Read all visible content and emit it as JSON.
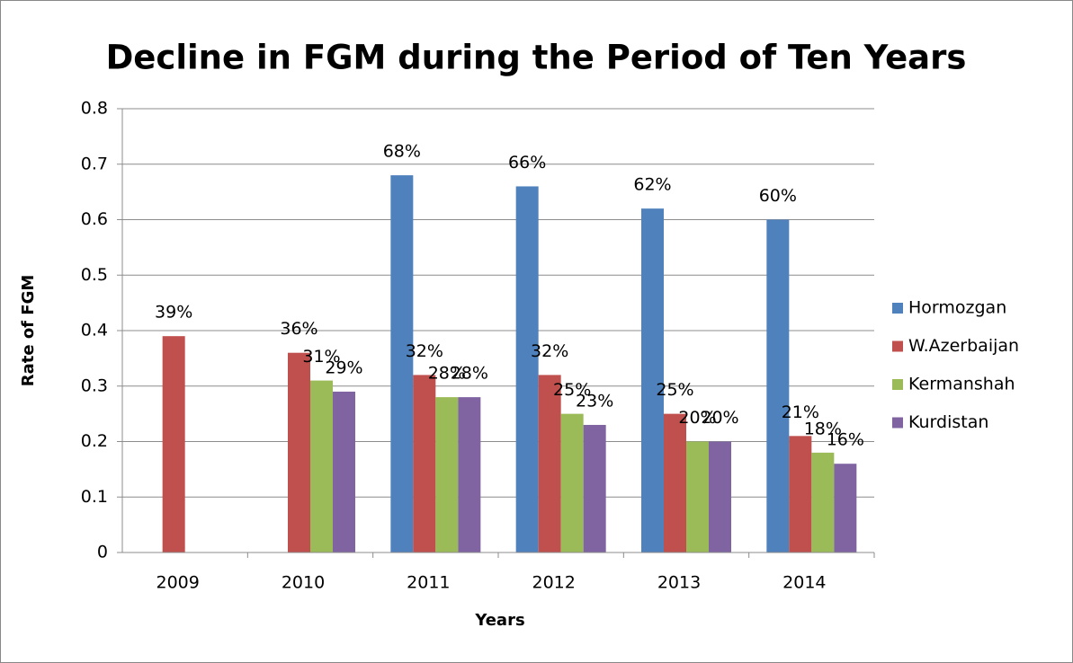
{
  "chart_data": {
    "type": "bar",
    "title": "Decline in FGM during the Period of Ten Years",
    "xlabel": "Years",
    "ylabel": "Rate of FGM",
    "categories": [
      "2009",
      "2010",
      "2011",
      "2012",
      "2013",
      "2014"
    ],
    "series": [
      {
        "name": "Hormozgan",
        "color": "#4f81bd",
        "values": [
          null,
          null,
          0.68,
          0.66,
          0.62,
          0.6
        ],
        "value_labels": [
          null,
          null,
          "68%",
          "66%",
          "62%",
          "60%"
        ]
      },
      {
        "name": "W.Azerbaijan",
        "color": "#c0504d",
        "values": [
          0.39,
          0.36,
          0.32,
          0.32,
          0.25,
          0.21
        ],
        "value_labels": [
          "39%",
          "36%",
          "32%",
          "32%",
          "25%",
          "21%"
        ]
      },
      {
        "name": "Kermanshah",
        "color": "#9bbb59",
        "values": [
          null,
          0.31,
          0.28,
          0.25,
          0.2,
          0.18
        ],
        "value_labels": [
          null,
          "31%",
          "28%",
          "25%",
          "20%",
          "18%"
        ]
      },
      {
        "name": "Kurdistan",
        "color": "#8064a2",
        "values": [
          null,
          0.29,
          0.28,
          0.23,
          0.2,
          0.16
        ],
        "value_labels": [
          null,
          "29%",
          "28%",
          "23%",
          "20%",
          "16%"
        ]
      }
    ],
    "ylim": [
      0,
      0.8
    ],
    "yticks": [
      0,
      0.1,
      0.2,
      0.3,
      0.4,
      0.5,
      0.6,
      0.7,
      0.8
    ],
    "grid": true,
    "legend": "right"
  }
}
